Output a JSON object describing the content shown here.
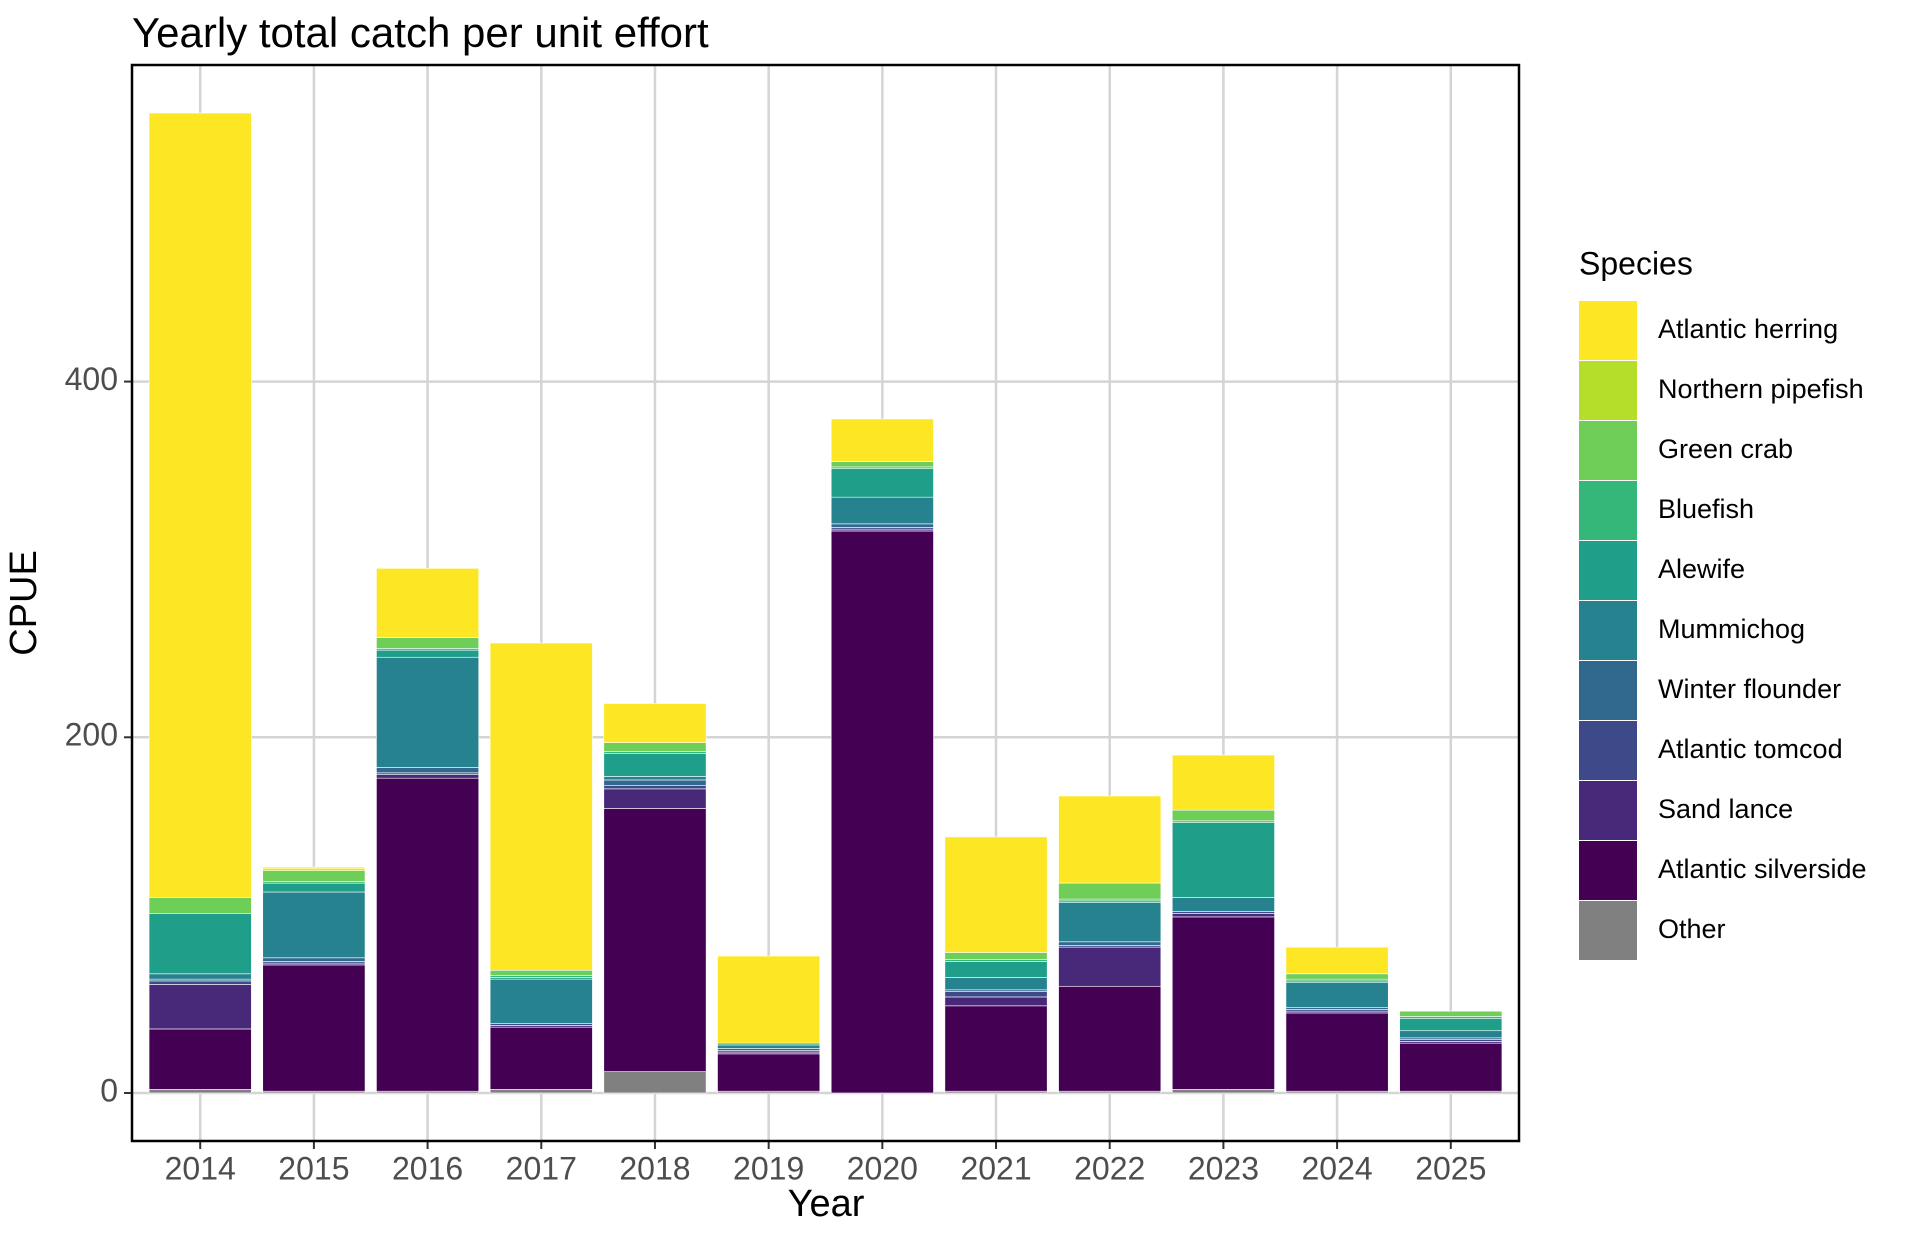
{
  "chart_data": {
    "type": "stacked_bar",
    "title": "Yearly total catch per unit effort",
    "x_label": "Year",
    "y_label": "CPUE",
    "legend_title": "Species",
    "categories": [
      "2014",
      "2015",
      "2016",
      "2017",
      "2018",
      "2019",
      "2020",
      "2021",
      "2022",
      "2023",
      "2024",
      "2025"
    ],
    "series": [
      {
        "name": "Other",
        "color": "#808080",
        "values": [
          2,
          1,
          1,
          2,
          12,
          1,
          0,
          1,
          1,
          2,
          1,
          1
        ]
      },
      {
        "name": "Atlantic silverside",
        "color": "#440154",
        "values": [
          34,
          71,
          176,
          35,
          148,
          21,
          316,
          48,
          59,
          97,
          44,
          27
        ]
      },
      {
        "name": "Sand lance",
        "color": "#482878",
        "values": [
          25,
          1,
          2,
          1,
          11,
          1,
          1,
          5,
          22,
          2,
          1,
          1
        ]
      },
      {
        "name": "Atlantic tomcod",
        "color": "#3e4989",
        "values": [
          2,
          1,
          1,
          1,
          2,
          1,
          1,
          3,
          1,
          1,
          1,
          1
        ]
      },
      {
        "name": "Winter flounder",
        "color": "#31688e",
        "values": [
          1,
          2,
          3,
          0,
          3,
          1,
          2,
          1,
          2,
          0,
          1,
          1
        ]
      },
      {
        "name": "Mummichog",
        "color": "#26828e",
        "values": [
          3,
          37,
          62,
          25,
          2,
          2,
          15,
          7,
          22,
          8,
          14,
          4
        ]
      },
      {
        "name": "Alewife",
        "color": "#1f9e89",
        "values": [
          34,
          5,
          4,
          1,
          13,
          1,
          16,
          9,
          1,
          42,
          1,
          7
        ]
      },
      {
        "name": "Bluefish",
        "color": "#35b779",
        "values": [
          0,
          1,
          1,
          1,
          1,
          0,
          1,
          1,
          1,
          1,
          1,
          1
        ]
      },
      {
        "name": "Green crab",
        "color": "#6ece58",
        "values": [
          9,
          6,
          6,
          3,
          5,
          0,
          3,
          4,
          9,
          6,
          3,
          3
        ]
      },
      {
        "name": "Northern pipefish",
        "color": "#b5de2b",
        "values": [
          0,
          1,
          0,
          0,
          0,
          0,
          0,
          0,
          0,
          0,
          0,
          0
        ]
      },
      {
        "name": "Atlantic herring",
        "color": "#fde725",
        "values": [
          441,
          1,
          39,
          184,
          22,
          49,
          24,
          65,
          49,
          31,
          15,
          0
        ]
      }
    ],
    "ylim": [
      -27,
      578
    ],
    "yticks": [
      0,
      200,
      400
    ],
    "grid": true
  }
}
